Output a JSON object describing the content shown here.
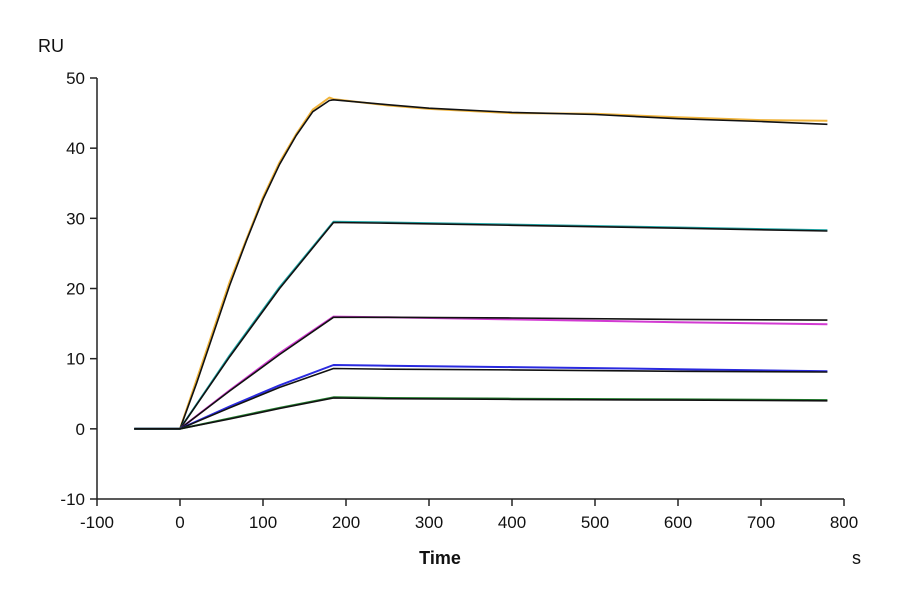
{
  "chart_data": {
    "type": "line",
    "ylabel": "RU",
    "xlabel": "Time",
    "xunit": "s",
    "xlim": [
      -100,
      800
    ],
    "ylim": [
      -10,
      50
    ],
    "xticks": [
      -100,
      0,
      100,
      200,
      300,
      400,
      500,
      600,
      700,
      800
    ],
    "yticks": [
      -10,
      0,
      10,
      20,
      30,
      40,
      50
    ],
    "grid": false,
    "legend": "none",
    "series": [
      {
        "role": "measured",
        "color": "#f0b43c",
        "x": [
          -55,
          -30,
          0,
          20,
          40,
          60,
          80,
          100,
          120,
          140,
          160,
          180,
          185,
          250,
          300,
          400,
          500,
          600,
          700,
          780
        ],
        "y": [
          0,
          0,
          0,
          7,
          14,
          21,
          27,
          33,
          38,
          42,
          45.5,
          47.2,
          47,
          46.1,
          45.6,
          45.0,
          44.9,
          44.4,
          44.0,
          43.9
        ]
      },
      {
        "role": "fit",
        "color": "#111111",
        "x": [
          -55,
          -30,
          0,
          20,
          40,
          60,
          80,
          100,
          120,
          140,
          160,
          180,
          185,
          250,
          300,
          400,
          500,
          600,
          700,
          780
        ],
        "y": [
          0,
          0,
          0,
          6.5,
          13.5,
          20.5,
          26.8,
          32.7,
          37.7,
          41.8,
          45.2,
          46.8,
          46.9,
          46.2,
          45.7,
          45.1,
          44.8,
          44.2,
          43.8,
          43.4
        ]
      },
      {
        "role": "measured",
        "color": "#1fa5a5",
        "x": [
          -55,
          0,
          60,
          120,
          185,
          250,
          400,
          600,
          780
        ],
        "y": [
          0,
          0,
          10.5,
          20.2,
          29.5,
          29.4,
          29.1,
          28.7,
          28.3
        ]
      },
      {
        "role": "fit",
        "color": "#111111",
        "x": [
          -55,
          0,
          60,
          120,
          185,
          250,
          400,
          600,
          780
        ],
        "y": [
          0,
          0,
          10.3,
          20.0,
          29.4,
          29.3,
          29.0,
          28.6,
          28.2
        ]
      },
      {
        "role": "measured",
        "color": "#d23ad2",
        "x": [
          -55,
          0,
          60,
          120,
          185,
          250,
          400,
          600,
          780
        ],
        "y": [
          0,
          0,
          5.5,
          10.8,
          16.0,
          15.9,
          15.6,
          15.2,
          14.9
        ]
      },
      {
        "role": "fit",
        "color": "#111111",
        "x": [
          -55,
          0,
          60,
          120,
          185,
          250,
          400,
          600,
          780
        ],
        "y": [
          0,
          0,
          5.4,
          10.6,
          15.9,
          15.9,
          15.8,
          15.6,
          15.5
        ]
      },
      {
        "role": "measured",
        "color": "#2a2adf",
        "x": [
          -55,
          0,
          60,
          120,
          185,
          250,
          400,
          600,
          780
        ],
        "y": [
          0,
          0,
          3.2,
          6.2,
          9.1,
          9.0,
          8.8,
          8.5,
          8.2
        ]
      },
      {
        "role": "fit",
        "color": "#111111",
        "x": [
          -55,
          0,
          60,
          120,
          185,
          250,
          400,
          600,
          780
        ],
        "y": [
          0,
          0,
          3.0,
          5.9,
          8.6,
          8.5,
          8.4,
          8.2,
          8.1
        ]
      },
      {
        "role": "measured",
        "color": "#1e7a2a",
        "x": [
          -55,
          0,
          60,
          120,
          185,
          250,
          400,
          600,
          780
        ],
        "y": [
          0,
          0,
          1.5,
          3.0,
          4.5,
          4.4,
          4.3,
          4.2,
          4.1
        ]
      },
      {
        "role": "fit",
        "color": "#111111",
        "x": [
          -55,
          0,
          60,
          120,
          185,
          250,
          400,
          600,
          780
        ],
        "y": [
          0,
          0,
          1.4,
          2.9,
          4.4,
          4.3,
          4.2,
          4.1,
          4.0
        ]
      }
    ]
  }
}
